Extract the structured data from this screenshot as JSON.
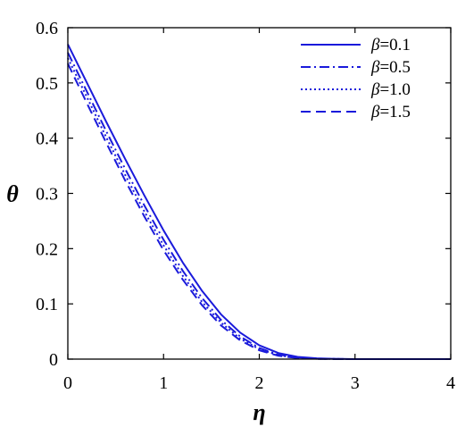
{
  "chart_data": {
    "type": "line",
    "xlabel": "η",
    "ylabel": "θ",
    "xlim": [
      0,
      4
    ],
    "ylim": [
      0,
      0.6
    ],
    "x_ticks": [
      "0",
      "1",
      "2",
      "3",
      "4"
    ],
    "y_ticks": [
      "0",
      "0.1",
      "0.2",
      "0.3",
      "0.4",
      "0.5",
      "0.6"
    ],
    "x_tick_values": [
      0,
      1,
      2,
      3,
      4
    ],
    "y_tick_values": [
      0,
      0.1,
      0.2,
      0.3,
      0.4,
      0.5,
      0.6
    ],
    "grid": false,
    "legend_position": "top-right",
    "line_color": "#1a1adb",
    "x": [
      0,
      0.2,
      0.4,
      0.6,
      0.8,
      1.0,
      1.2,
      1.4,
      1.6,
      1.8,
      2.0,
      2.2,
      2.4,
      2.6,
      2.8,
      3.0,
      3.2,
      3.4,
      3.6,
      3.8,
      4.0
    ],
    "series": [
      {
        "name": "β=0.1",
        "dash": "solid",
        "values": [
          0.57,
          0.5,
          0.43,
          0.362,
          0.296,
          0.233,
          0.175,
          0.124,
          0.081,
          0.048,
          0.025,
          0.011,
          0.004,
          0.0015,
          0.0005,
          0.0001,
          0,
          0,
          0,
          0,
          0
        ]
      },
      {
        "name": "β=0.5",
        "dash": "dashdot",
        "values": [
          0.555,
          0.484,
          0.413,
          0.344,
          0.278,
          0.216,
          0.16,
          0.111,
          0.071,
          0.041,
          0.02,
          0.008,
          0.003,
          0.0009,
          0.0002,
          0,
          0,
          0,
          0,
          0,
          0
        ]
      },
      {
        "name": "β=1.0",
        "dash": "dotted",
        "values": [
          0.545,
          0.474,
          0.402,
          0.333,
          0.267,
          0.206,
          0.151,
          0.104,
          0.066,
          0.037,
          0.018,
          0.007,
          0.002,
          0.0007,
          0.0002,
          0,
          0,
          0,
          0,
          0,
          0
        ]
      },
      {
        "name": "β=1.5",
        "dash": "dashed",
        "values": [
          0.535,
          0.463,
          0.392,
          0.323,
          0.258,
          0.197,
          0.144,
          0.098,
          0.061,
          0.034,
          0.016,
          0.006,
          0.002,
          0.0005,
          0.0001,
          0,
          0,
          0,
          0,
          0,
          0
        ]
      }
    ]
  }
}
